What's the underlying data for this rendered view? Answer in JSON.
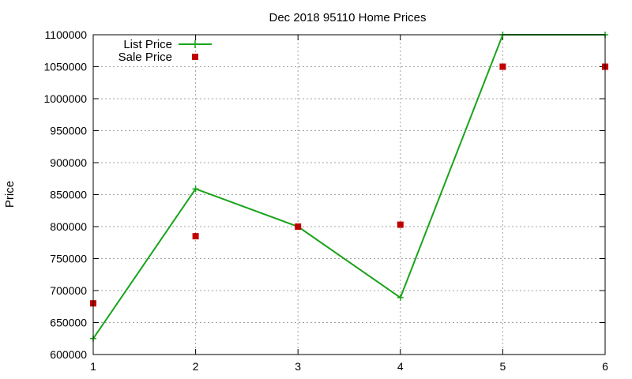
{
  "chart_data": {
    "type": "line",
    "title": "Dec 2018 95110 Home Prices",
    "xlabel": "",
    "ylabel": "Price",
    "x": [
      1,
      2,
      3,
      4,
      5,
      6
    ],
    "xlim": [
      1,
      6
    ],
    "ylim": [
      600000,
      1100000
    ],
    "x_ticks": [
      "1",
      "2",
      "3",
      "4",
      "5",
      "6"
    ],
    "y_ticks": [
      "600000",
      "650000",
      "700000",
      "750000",
      "800000",
      "850000",
      "900000",
      "950000",
      "1000000",
      "1050000",
      "1100000"
    ],
    "grid": true,
    "legend_position": "top-left",
    "series": [
      {
        "name": "List Price",
        "style": "line-with-plus-markers",
        "color": "#1aa31a",
        "values": [
          625000,
          859000,
          800000,
          689000,
          1100000,
          1100000
        ]
      },
      {
        "name": "Sale Price",
        "style": "square-markers",
        "color": "#c00000",
        "values": [
          680000,
          785000,
          800000,
          803000,
          1050000,
          1050000
        ]
      }
    ]
  }
}
